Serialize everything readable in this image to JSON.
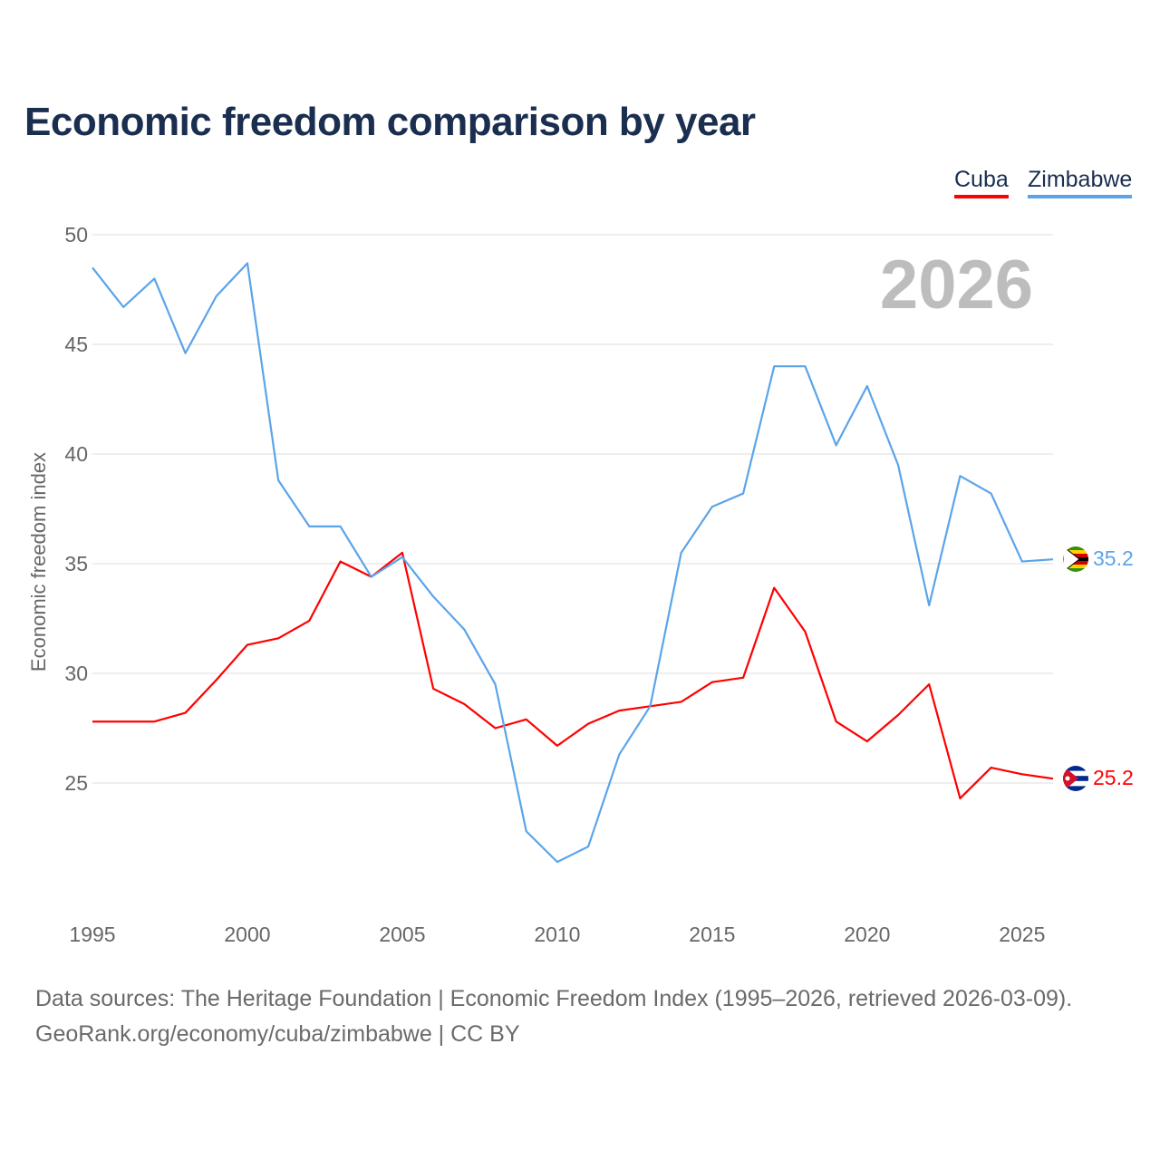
{
  "chart_data": {
    "type": "line",
    "title": "Economic freedom comparison by year",
    "xlabel": "",
    "ylabel": "Economic freedom index",
    "xlim": [
      1995,
      2026
    ],
    "ylim": [
      20,
      50
    ],
    "x_ticks": [
      "1995",
      "2000",
      "2005",
      "2010",
      "2015",
      "2020",
      "2025"
    ],
    "y_ticks": [
      "25",
      "30",
      "35",
      "40",
      "45",
      "50"
    ],
    "grid": true,
    "legend_position": "top-right",
    "year_label": "2026",
    "x": [
      1995,
      1996,
      1997,
      1998,
      1999,
      2000,
      2001,
      2002,
      2003,
      2004,
      2005,
      2006,
      2007,
      2008,
      2009,
      2010,
      2011,
      2012,
      2013,
      2014,
      2015,
      2016,
      2017,
      2018,
      2019,
      2020,
      2021,
      2022,
      2023,
      2024,
      2025,
      2026
    ],
    "series": [
      {
        "name": "Cuba",
        "color": "#ff0000",
        "end_label": "25.2",
        "values": [
          27.8,
          27.8,
          27.8,
          28.2,
          29.7,
          31.3,
          31.6,
          32.4,
          35.1,
          34.4,
          35.5,
          29.3,
          28.6,
          27.5,
          27.9,
          26.7,
          27.7,
          28.3,
          28.5,
          28.7,
          29.6,
          29.8,
          33.9,
          31.9,
          27.8,
          26.9,
          28.1,
          29.5,
          24.3,
          25.7,
          25.4,
          25.2
        ]
      },
      {
        "name": "Zimbabwe",
        "color": "#5ba4ea",
        "end_label": "35.2",
        "values": [
          48.5,
          46.7,
          48.0,
          44.6,
          47.2,
          48.7,
          38.8,
          36.7,
          36.7,
          34.4,
          35.3,
          33.5,
          32.0,
          29.5,
          22.8,
          21.4,
          22.1,
          26.3,
          28.5,
          35.5,
          37.6,
          38.2,
          44.0,
          44.0,
          40.4,
          43.1,
          39.5,
          33.1,
          39.0,
          38.2,
          35.1,
          35.2
        ]
      }
    ]
  },
  "sources": {
    "line1": "Data sources: The Heritage Foundation | Economic Freedom Index (1995–2026, retrieved 2026-03-09).",
    "line2": "GeoRank.org/economy/cuba/zimbabwe | CC BY"
  }
}
